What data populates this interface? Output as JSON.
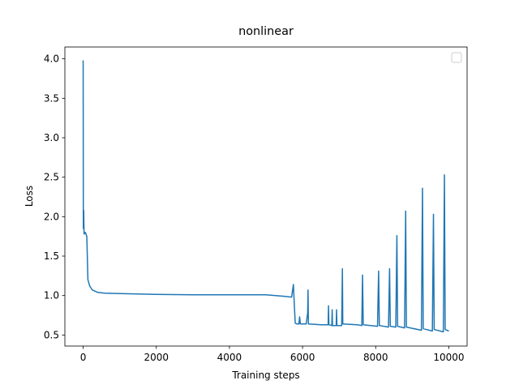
{
  "chart_data": {
    "type": "line",
    "title": "nonlinear",
    "x_label": "Training steps",
    "y_label": "Loss",
    "x": [
      0,
      5,
      15,
      25,
      60,
      100,
      130,
      180,
      250,
      400,
      600,
      1000,
      2000,
      3000,
      4000,
      5000,
      5500,
      5700,
      5750,
      5770,
      5800,
      5850,
      5900,
      5920,
      5940,
      6100,
      6140,
      6150,
      6160,
      6500,
      6700,
      6710,
      6720,
      6800,
      6810,
      6820,
      6920,
      6930,
      6940,
      7070,
      7090,
      7100,
      7500,
      7620,
      7640,
      7660,
      8050,
      8080,
      8100,
      8350,
      8380,
      8400,
      8550,
      8580,
      8600,
      8790,
      8820,
      8840,
      9250,
      9280,
      9300,
      9550,
      9580,
      9600,
      9850,
      9880,
      9900,
      10000
    ],
    "series": [
      {
        "color": "#1f77b4",
        "values": [
          3.98,
          1.85,
          2.08,
          1.78,
          1.8,
          1.75,
          1.2,
          1.12,
          1.07,
          1.04,
          1.03,
          1.025,
          1.015,
          1.01,
          1.01,
          1.01,
          0.99,
          0.98,
          1.14,
          0.93,
          0.65,
          0.64,
          0.64,
          0.73,
          0.64,
          0.64,
          0.78,
          1.07,
          0.64,
          0.63,
          0.63,
          0.87,
          0.63,
          0.62,
          0.82,
          0.62,
          0.62,
          0.82,
          0.62,
          0.62,
          1.34,
          0.64,
          0.63,
          0.62,
          1.26,
          0.63,
          0.61,
          1.31,
          0.62,
          0.6,
          1.34,
          0.61,
          0.6,
          1.76,
          0.61,
          0.59,
          2.07,
          0.6,
          0.56,
          2.36,
          0.58,
          0.55,
          2.03,
          0.57,
          0.54,
          2.53,
          0.57,
          0.55
        ]
      }
    ],
    "xlim": [
      -500,
      10500
    ],
    "ylim": [
      0.36,
      4.15
    ],
    "xticks": [
      0,
      2000,
      4000,
      6000,
      8000,
      10000
    ],
    "yticks": [
      0.5,
      {
        "value": 1,
        "label": "1.0"
      },
      1.5,
      {
        "value": 2,
        "label": "2.0"
      },
      2.5,
      {
        "value": 3,
        "label": "3.0"
      },
      3.5,
      {
        "value": 4,
        "label": "4.0"
      }
    ]
  }
}
